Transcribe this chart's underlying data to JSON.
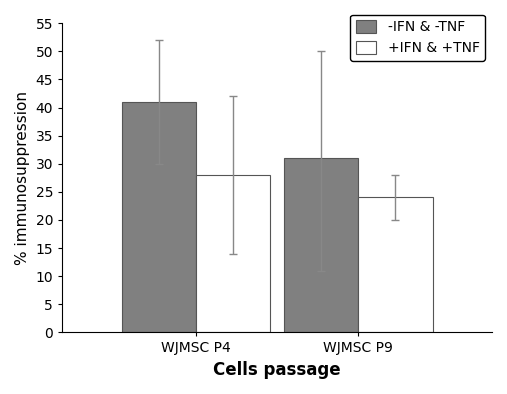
{
  "groups": [
    "WJMSC P4",
    "WJMSC P9"
  ],
  "series": [
    {
      "label": "-IFN & -TNF",
      "color": "#808080",
      "edgecolor": "#555555",
      "values": [
        41,
        31
      ],
      "yerr_upper": [
        11,
        19
      ],
      "yerr_lower": [
        11,
        20
      ]
    },
    {
      "label": "+IFN & +TNF",
      "color": "#ffffff",
      "edgecolor": "#555555",
      "values": [
        28,
        24
      ],
      "yerr_upper": [
        14,
        4
      ],
      "yerr_lower": [
        14,
        4
      ]
    }
  ],
  "ylabel": "% immunosuppression",
  "xlabel": "Cells passage",
  "ylim": [
    0,
    55
  ],
  "yticks": [
    0,
    5,
    10,
    15,
    20,
    25,
    30,
    35,
    40,
    45,
    50,
    55
  ],
  "bar_width": 0.32,
  "group_positions": [
    0.3,
    1.0
  ],
  "legend_loc": "upper right",
  "background_color": "#ffffff",
  "capsize": 3,
  "ecolor": "#888888",
  "elinewidth": 1.0,
  "bar_linewidth": 0.8,
  "ylabel_fontsize": 11,
  "xlabel_fontsize": 12,
  "tick_fontsize": 10,
  "legend_fontsize": 10
}
